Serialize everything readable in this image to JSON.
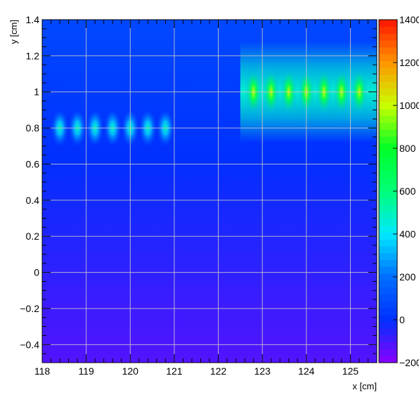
{
  "chart_data": {
    "type": "heatmap",
    "title": "",
    "xlabel": "x [cm]",
    "ylabel": "y [cm]",
    "xlim": [
      118,
      125.6
    ],
    "ylim": [
      -0.5,
      1.4
    ],
    "zlim": [
      -200,
      1400
    ],
    "x_ticks": [
      {
        "value": 118,
        "label": "118"
      },
      {
        "value": 119,
        "label": "119"
      },
      {
        "value": 120,
        "label": "120"
      },
      {
        "value": 121,
        "label": "121"
      },
      {
        "value": 122,
        "label": "122"
      },
      {
        "value": 123,
        "label": "123"
      },
      {
        "value": 124,
        "label": "124"
      },
      {
        "value": 125,
        "label": "125"
      }
    ],
    "y_ticks": [
      {
        "value": -0.4,
        "label": "−0.4"
      },
      {
        "value": -0.2,
        "label": "−0.2"
      },
      {
        "value": 0,
        "label": "0"
      },
      {
        "value": 0.2,
        "label": "0.2"
      },
      {
        "value": 0.4,
        "label": "0.4"
      },
      {
        "value": 0.6,
        "label": "0.6"
      },
      {
        "value": 0.8,
        "label": "0.8"
      },
      {
        "value": 1.0,
        "label": "1"
      },
      {
        "value": 1.2,
        "label": "1.2"
      },
      {
        "value": 1.4,
        "label": "1.4"
      }
    ],
    "z_ticks": [
      {
        "value": -200,
        "label": "−200"
      },
      {
        "value": 0,
        "label": "0"
      },
      {
        "value": 200,
        "label": "200"
      },
      {
        "value": 400,
        "label": "400"
      },
      {
        "value": 600,
        "label": "600"
      },
      {
        "value": 800,
        "label": "800"
      },
      {
        "value": 1000,
        "label": "1000"
      },
      {
        "value": 1200,
        "label": "1200"
      },
      {
        "value": 1400,
        "label": "1400"
      }
    ],
    "grid": true,
    "palette": "rainbow (purple-blue-cyan-green-yellow-red)",
    "colors": {
      "low": "#8a00ff",
      "mid_low": "#0030ff",
      "mid": "#00e8ff",
      "high": "#00ff40",
      "top": "#ff2000"
    },
    "hot_spots_row1": {
      "y": 0.8,
      "x": [
        118.4,
        118.8,
        119.2,
        119.6,
        120.0,
        120.4,
        120.8
      ],
      "peak_z": 500
    },
    "hot_spots_row2": {
      "y": 1.0,
      "x": [
        122.8,
        123.2,
        123.6,
        124.0,
        124.4,
        124.8,
        125.2
      ],
      "peak_z": 1000
    },
    "plateau_row2": {
      "x_range": [
        122.5,
        125.6
      ],
      "y": 1.0,
      "z": 470
    },
    "background_gradient": {
      "z_at_ymin": -120,
      "z_at_ymax": 80
    }
  }
}
